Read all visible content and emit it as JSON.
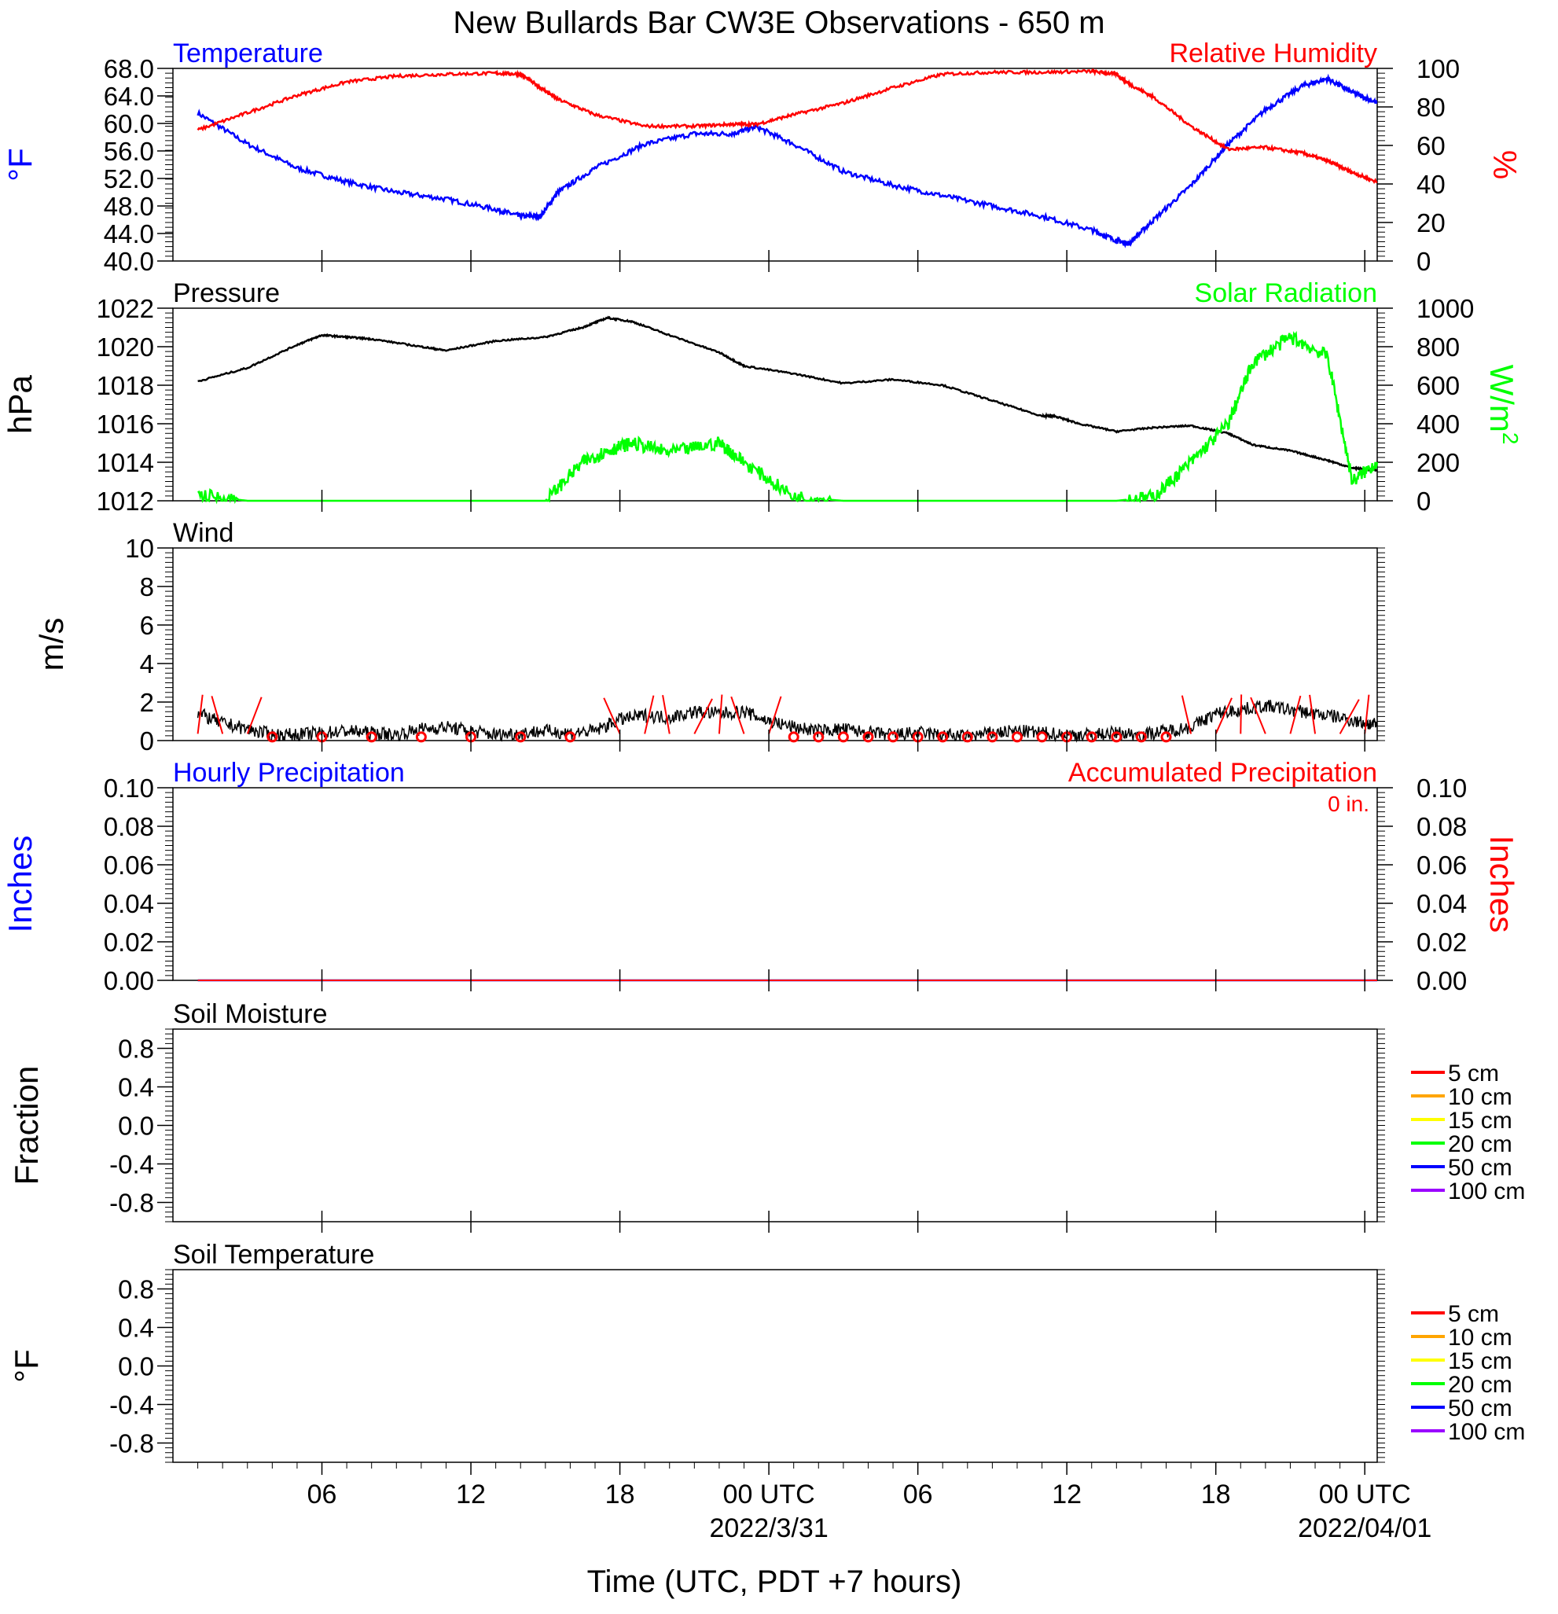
{
  "title": "New Bullards Bar CW3E Observations - 650 m",
  "xlabel": "Time (UTC, PDT +7 hours)",
  "time_axis": {
    "tick_labels": [
      "06",
      "12",
      "18",
      "00 UTC",
      "06",
      "12",
      "18",
      "00 UTC"
    ],
    "date_labels": [
      "2022/3/31",
      "2022/04/01"
    ]
  },
  "colors": {
    "temperature": "#0000ff",
    "humidity": "#ff0000",
    "pressure": "#000000",
    "solar": "#00ff00",
    "wind": "#000000",
    "wind_barb": "#ff0000",
    "precip_hourly": "#0000ff",
    "precip_accum": "#ff0000"
  },
  "panels": {
    "temp_rh": {
      "left_title": "Temperature",
      "right_title": "Relative Humidity",
      "left_unit": "°F",
      "right_unit": "%",
      "left_ticks": [
        "68.0",
        "64.0",
        "60.0",
        "56.0",
        "52.0",
        "48.0",
        "44.0",
        "40.0"
      ],
      "right_ticks": [
        "100",
        "80",
        "60",
        "40",
        "20",
        "0"
      ]
    },
    "pressure_solar": {
      "left_title": "Pressure",
      "right_title": "Solar Radiation",
      "left_unit": "hPa",
      "right_unit_base": "W/m",
      "right_unit_sup": "2",
      "left_ticks": [
        "1022",
        "1020",
        "1018",
        "1016",
        "1014",
        "1012"
      ],
      "right_ticks": [
        "1000",
        "800",
        "600",
        "400",
        "200",
        "0"
      ]
    },
    "wind": {
      "left_title": "Wind",
      "left_unit": "m/s",
      "left_ticks": [
        "10",
        "8",
        "6",
        "4",
        "2",
        "0"
      ]
    },
    "precip": {
      "left_title": "Hourly Precipitation",
      "right_title": "Accumulated Precipitation",
      "accum_total": "0 in.",
      "left_unit": "Inches",
      "right_unit": "Inches",
      "left_ticks": [
        "0.10",
        "0.08",
        "0.06",
        "0.04",
        "0.02",
        "0.00"
      ],
      "right_ticks": [
        "0.10",
        "0.08",
        "0.06",
        "0.04",
        "0.02",
        "0.00"
      ]
    },
    "soil_moisture": {
      "left_title": "Soil Moisture",
      "left_unit": "Fraction",
      "left_ticks": [
        "0.8",
        "0.4",
        "0.0",
        "-0.4",
        "-0.8"
      ]
    },
    "soil_temp": {
      "left_title": "Soil Temperature",
      "left_unit": "°F",
      "left_ticks": [
        "0.8",
        "0.4",
        "0.0",
        "-0.4",
        "-0.8"
      ]
    }
  },
  "soil_legend": [
    {
      "label": "5 cm",
      "color": "#ff0000"
    },
    {
      "label": "10 cm",
      "color": "#ffa500"
    },
    {
      "label": "15 cm",
      "color": "#ffff00"
    },
    {
      "label": "20 cm",
      "color": "#00ff00"
    },
    {
      "label": "50 cm",
      "color": "#0000ff"
    },
    {
      "label": "100 cm",
      "color": "#9a00ff"
    }
  ],
  "chart_data": [
    {
      "type": "line",
      "ylabel": "°F",
      "y2label": "%",
      "ylim": [
        40,
        68
      ],
      "y2lim": [
        0,
        100
      ],
      "x_hours": [
        1,
        3,
        5,
        7,
        9,
        11,
        13,
        14,
        14.8,
        15.5,
        17,
        19,
        21,
        22.5,
        23.5,
        25,
        27,
        29,
        31,
        33,
        35,
        37,
        38,
        38.5,
        39.5,
        41,
        42.5,
        44,
        45.5,
        46.5,
        47.5,
        48.5
      ],
      "series": [
        {
          "name": "Temperature",
          "axis": "left",
          "values": [
            61.5,
            57,
            53.5,
            51.5,
            50,
            49,
            47.5,
            46.5,
            46.5,
            50,
            53.5,
            57,
            58.5,
            58.5,
            59.5,
            57,
            53,
            51,
            49.5,
            48,
            46.5,
            44.5,
            43,
            42.5,
            46,
            51,
            57,
            62,
            65.5,
            66.5,
            64.5,
            63
          ]
        },
        {
          "name": "Relative Humidity",
          "axis": "right",
          "values": [
            68,
            77,
            86,
            93,
            96,
            97,
            97.5,
            97,
            90,
            84,
            76,
            70,
            70,
            71,
            71,
            76,
            82,
            90,
            97,
            98,
            98,
            98.5,
            97,
            92,
            85,
            70,
            58,
            59,
            56,
            52,
            46,
            41
          ]
        }
      ]
    },
    {
      "type": "line",
      "ylabel": "hPa",
      "y2label": "W/m2",
      "ylim": [
        1012,
        1022
      ],
      "y2lim": [
        0,
        1000
      ],
      "x_hours": [
        1,
        3,
        5,
        6,
        7,
        8,
        10,
        11,
        13,
        15,
        16.5,
        17.5,
        18.5,
        20,
        22,
        23,
        25,
        27,
        29,
        31,
        33,
        35,
        35.5,
        36.5,
        38,
        39.5,
        41,
        42.5,
        43.5,
        45,
        46.5,
        47.5,
        48.5
      ],
      "series": [
        {
          "name": "Pressure",
          "axis": "left",
          "values": [
            1018.2,
            1018.9,
            1020.1,
            1020.6,
            1020.5,
            1020.4,
            1020.0,
            1019.8,
            1020.3,
            1020.5,
            1021.0,
            1021.5,
            1021.3,
            1020.6,
            1019.7,
            1019.0,
            1018.6,
            1018.1,
            1018.3,
            1018.0,
            1017.2,
            1016.4,
            1016.4,
            1016.0,
            1015.6,
            1015.8,
            1015.9,
            1015.5,
            1014.9,
            1014.6,
            1014.1,
            1013.7,
            1013.6
          ]
        },
        {
          "name": "Solar Radiation",
          "axis": "right",
          "values": [
            30,
            0,
            0,
            0,
            0,
            0,
            0,
            0,
            0,
            0,
            200,
            260,
            300,
            250,
            300,
            200,
            20,
            0,
            0,
            0,
            0,
            0,
            0,
            0,
            0,
            20,
            200,
            400,
            720,
            850,
            750,
            100,
            200
          ]
        }
      ]
    },
    {
      "type": "line",
      "ylabel": "m/s",
      "ylim": [
        0,
        10
      ],
      "x_hours": [
        1,
        2,
        3,
        4,
        5,
        6,
        7,
        8,
        9,
        10,
        11,
        12,
        13,
        14,
        15,
        16,
        17,
        18,
        19,
        20,
        21,
        22,
        23,
        24,
        25,
        26,
        27,
        28,
        29,
        30,
        31,
        32,
        33,
        34,
        35,
        36,
        37,
        38,
        39,
        40,
        41,
        42,
        43,
        44,
        45,
        46,
        47,
        48,
        48.5
      ],
      "series": [
        {
          "name": "Wind",
          "values": [
            1.4,
            0.9,
            0.6,
            0.3,
            0.3,
            0.4,
            0.5,
            0.4,
            0.3,
            0.6,
            0.7,
            0.5,
            0.3,
            0.4,
            0.5,
            0.4,
            0.5,
            1.1,
            1.3,
            1.2,
            1.5,
            1.4,
            1.5,
            1.0,
            0.7,
            0.5,
            0.6,
            0.4,
            0.3,
            0.4,
            0.3,
            0.2,
            0.4,
            0.5,
            0.4,
            0.3,
            0.3,
            0.4,
            0.3,
            0.5,
            0.7,
            1.4,
            1.6,
            1.8,
            1.6,
            1.4,
            1.2,
            0.9,
            0.8
          ]
        }
      ]
    },
    {
      "type": "line",
      "ylabel": "Inches",
      "y2label": "Inches",
      "ylim": [
        0,
        0.1
      ],
      "y2lim": [
        0,
        0.1
      ],
      "x_hours": [
        1,
        48.5
      ],
      "series": [
        {
          "name": "Hourly Precipitation",
          "axis": "left",
          "values": [
            0,
            0
          ]
        },
        {
          "name": "Accumulated Precipitation",
          "axis": "right",
          "values": [
            0,
            0
          ]
        }
      ]
    }
  ]
}
